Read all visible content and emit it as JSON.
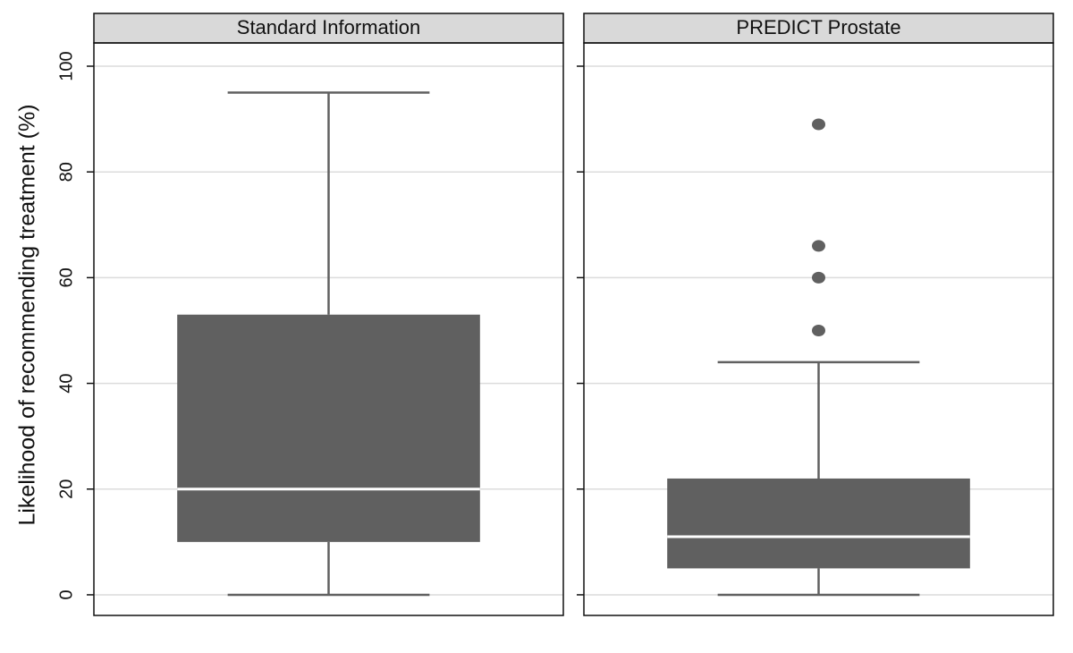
{
  "chart_data": {
    "type": "box",
    "y_label": "Likelihood of recommending treatment (%)",
    "ylim": [
      -3.9,
      104.4
    ],
    "yticks": [
      0,
      20,
      40,
      60,
      80,
      100
    ],
    "grid": true,
    "color": "#606060",
    "median_color": "#ffffff",
    "panels": [
      {
        "name": "Standard Information",
        "min": 0,
        "q1": 10,
        "median": 20,
        "q3": 53,
        "max": 95
      },
      {
        "name": "PREDICT Prostate",
        "min": 0,
        "q1": 5,
        "median": 11,
        "q3": 22,
        "max": 44,
        "outliers": [
          50,
          60,
          66,
          89
        ]
      }
    ]
  }
}
